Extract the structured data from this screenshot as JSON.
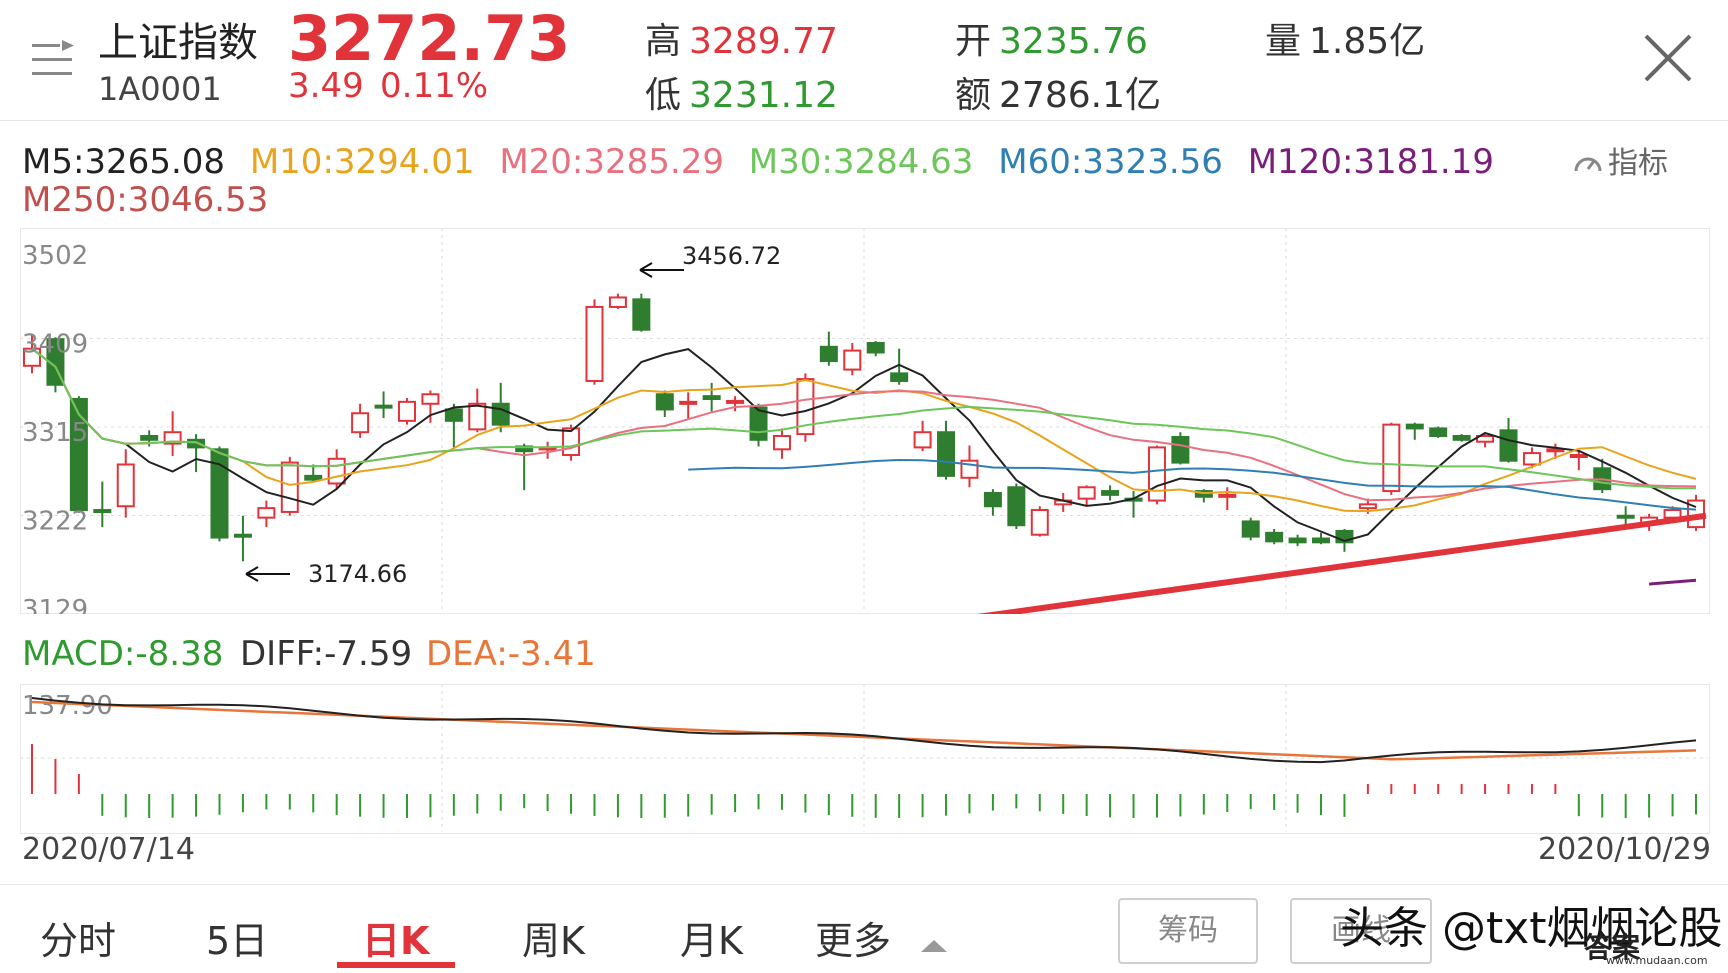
{
  "header": {
    "name": "上证指数",
    "code": "1A0001",
    "price": "3272.73",
    "change": "3.49",
    "change_pct": "0.11%",
    "high_label": "高",
    "high": "3289.77",
    "low_label": "低",
    "low": "3231.12",
    "open_label": "开",
    "open": "3235.76",
    "amount_label": "额",
    "amount": "2786.1亿",
    "volume_label": "量",
    "volume": "1.85亿"
  },
  "ma_legend": [
    {
      "text": "M5:3265.08",
      "color": "#222222"
    },
    {
      "text": "M10:3294.01",
      "color": "#e8a41c"
    },
    {
      "text": "M20:3285.29",
      "color": "#e8707f"
    },
    {
      "text": "M30:3284.63",
      "color": "#6cc65a"
    },
    {
      "text": "M60:3323.56",
      "color": "#2f7fb3"
    },
    {
      "text": "M120:3181.19",
      "color": "#7a1e7a"
    },
    {
      "text": "M250:3046.53",
      "color": "#c0504d"
    }
  ],
  "indicator_button": "指标",
  "colors": {
    "up": "#e0333a",
    "down": "#2f7d2f",
    "macd_dea": "#e8763a",
    "macd_diff": "#222222"
  },
  "price_axis": [
    "3502",
    "3409",
    "3315",
    "3222",
    "3129"
  ],
  "annotations": {
    "peak": "3456.72",
    "trough": "3174.66"
  },
  "macd": {
    "macd": "MACD:-8.38",
    "diff": "DIFF:-7.59",
    "dea": "DEA:-3.41",
    "axis_top": "137.90"
  },
  "dates": {
    "start": "2020/07/14",
    "end": "2020/10/29"
  },
  "tabs": [
    "分时",
    "5日",
    "日K",
    "周K",
    "月K",
    "更多"
  ],
  "active_tab": "日K",
  "buttons": {
    "chips": "筹码",
    "draw": "画线"
  },
  "watermark": {
    "text": "头条 @txt烟烟论股",
    "logo": "答案",
    "url": "www.mudaan.com"
  },
  "chart_data": {
    "type": "candlestick",
    "y_range": [
      3129,
      3502
    ],
    "candles": [
      {
        "o": 3380,
        "c": 3398,
        "h": 3412,
        "l": 3372
      },
      {
        "o": 3408,
        "c": 3360,
        "h": 3410,
        "l": 3352
      },
      {
        "o": 3345,
        "c": 3228,
        "h": 3348,
        "l": 3225
      },
      {
        "o": 3228,
        "c": 3227,
        "h": 3258,
        "l": 3210
      },
      {
        "o": 3232,
        "c": 3276,
        "h": 3292,
        "l": 3220
      },
      {
        "o": 3306,
        "c": 3302,
        "h": 3312,
        "l": 3295
      },
      {
        "o": 3298,
        "c": 3310,
        "h": 3332,
        "l": 3285
      },
      {
        "o": 3302,
        "c": 3294,
        "h": 3308,
        "l": 3268
      },
      {
        "o": 3292,
        "c": 3199,
        "h": 3295,
        "l": 3195
      },
      {
        "o": 3202,
        "c": 3201,
        "h": 3222,
        "l": 3174
      },
      {
        "o": 3220,
        "c": 3230,
        "h": 3238,
        "l": 3210
      },
      {
        "o": 3226,
        "c": 3278,
        "h": 3284,
        "l": 3222
      },
      {
        "o": 3264,
        "c": 3260,
        "h": 3276,
        "l": 3258
      },
      {
        "o": 3256,
        "c": 3282,
        "h": 3292,
        "l": 3250
      },
      {
        "o": 3310,
        "c": 3330,
        "h": 3340,
        "l": 3304
      },
      {
        "o": 3338,
        "c": 3336,
        "h": 3353,
        "l": 3325
      },
      {
        "o": 3322,
        "c": 3342,
        "h": 3346,
        "l": 3318
      },
      {
        "o": 3340,
        "c": 3350,
        "h": 3354,
        "l": 3320
      },
      {
        "o": 3334,
        "c": 3322,
        "h": 3340,
        "l": 3294
      },
      {
        "o": 3313,
        "c": 3340,
        "h": 3356,
        "l": 3310
      },
      {
        "o": 3340,
        "c": 3318,
        "h": 3362,
        "l": 3310
      },
      {
        "o": 3295,
        "c": 3290,
        "h": 3298,
        "l": 3249
      },
      {
        "o": 3292,
        "c": 3294,
        "h": 3300,
        "l": 3282
      },
      {
        "o": 3286,
        "c": 3314,
        "h": 3318,
        "l": 3280
      },
      {
        "o": 3364,
        "c": 3442,
        "h": 3450,
        "l": 3360
      },
      {
        "o": 3442,
        "c": 3452,
        "h": 3456,
        "l": 3440
      },
      {
        "o": 3450,
        "c": 3418,
        "h": 3456,
        "l": 3416
      },
      {
        "o": 3350,
        "c": 3334,
        "h": 3354,
        "l": 3326
      },
      {
        "o": 3342,
        "c": 3342,
        "h": 3352,
        "l": 3324
      },
      {
        "o": 3348,
        "c": 3345,
        "h": 3362,
        "l": 3332
      },
      {
        "o": 3343,
        "c": 3343,
        "h": 3348,
        "l": 3332
      },
      {
        "o": 3336,
        "c": 3302,
        "h": 3340,
        "l": 3295
      },
      {
        "o": 3292,
        "c": 3306,
        "h": 3314,
        "l": 3282
      },
      {
        "o": 3308,
        "c": 3366,
        "h": 3372,
        "l": 3300
      },
      {
        "o": 3400,
        "c": 3385,
        "h": 3416,
        "l": 3380
      },
      {
        "o": 3376,
        "c": 3396,
        "h": 3404,
        "l": 3370
      },
      {
        "o": 3404,
        "c": 3394,
        "h": 3406,
        "l": 3390
      },
      {
        "o": 3372,
        "c": 3364,
        "h": 3398,
        "l": 3360
      },
      {
        "o": 3294,
        "c": 3310,
        "h": 3322,
        "l": 3290
      },
      {
        "o": 3310,
        "c": 3264,
        "h": 3322,
        "l": 3260
      },
      {
        "o": 3262,
        "c": 3280,
        "h": 3296,
        "l": 3252
      },
      {
        "o": 3246,
        "c": 3232,
        "h": 3250,
        "l": 3222
      },
      {
        "o": 3252,
        "c": 3212,
        "h": 3256,
        "l": 3208
      },
      {
        "o": 3202,
        "c": 3228,
        "h": 3232,
        "l": 3200
      },
      {
        "o": 3234,
        "c": 3238,
        "h": 3246,
        "l": 3226
      },
      {
        "o": 3240,
        "c": 3252,
        "h": 3254,
        "l": 3232
      },
      {
        "o": 3248,
        "c": 3244,
        "h": 3254,
        "l": 3238
      },
      {
        "o": 3240,
        "c": 3238,
        "h": 3248,
        "l": 3220
      },
      {
        "o": 3238,
        "c": 3294,
        "h": 3296,
        "l": 3234
      },
      {
        "o": 3305,
        "c": 3278,
        "h": 3310,
        "l": 3276
      },
      {
        "o": 3248,
        "c": 3242,
        "h": 3250,
        "l": 3236
      },
      {
        "o": 3242,
        "c": 3244,
        "h": 3252,
        "l": 3228
      },
      {
        "o": 3216,
        "c": 3200,
        "h": 3220,
        "l": 3196
      },
      {
        "o": 3204,
        "c": 3195,
        "h": 3208,
        "l": 3192
      },
      {
        "o": 3198,
        "c": 3194,
        "h": 3202,
        "l": 3190
      },
      {
        "o": 3198,
        "c": 3194,
        "h": 3204,
        "l": 3192
      },
      {
        "o": 3206,
        "c": 3194,
        "h": 3208,
        "l": 3184
      },
      {
        "o": 3230,
        "c": 3234,
        "h": 3240,
        "l": 3224
      },
      {
        "o": 3248,
        "c": 3318,
        "h": 3320,
        "l": 3244
      },
      {
        "o": 3318,
        "c": 3314,
        "h": 3320,
        "l": 3302
      },
      {
        "o": 3314,
        "c": 3306,
        "h": 3316,
        "l": 3304
      },
      {
        "o": 3306,
        "c": 3302,
        "h": 3308,
        "l": 3300
      },
      {
        "o": 3300,
        "c": 3306,
        "h": 3308,
        "l": 3294
      },
      {
        "o": 3312,
        "c": 3280,
        "h": 3325,
        "l": 3278
      },
      {
        "o": 3276,
        "c": 3288,
        "h": 3294,
        "l": 3272
      },
      {
        "o": 3292,
        "c": 3292,
        "h": 3298,
        "l": 3282
      },
      {
        "o": 3286,
        "c": 3286,
        "h": 3290,
        "l": 3270
      },
      {
        "o": 3272,
        "c": 3250,
        "h": 3282,
        "l": 3246
      },
      {
        "o": 3222,
        "c": 3220,
        "h": 3232,
        "l": 3208
      },
      {
        "o": 3214,
        "c": 3220,
        "h": 3224,
        "l": 3206
      },
      {
        "o": 3220,
        "c": 3228,
        "h": 3232,
        "l": 3214
      },
      {
        "o": 3210,
        "c": 3238,
        "h": 3244,
        "l": 3206
      }
    ]
  }
}
